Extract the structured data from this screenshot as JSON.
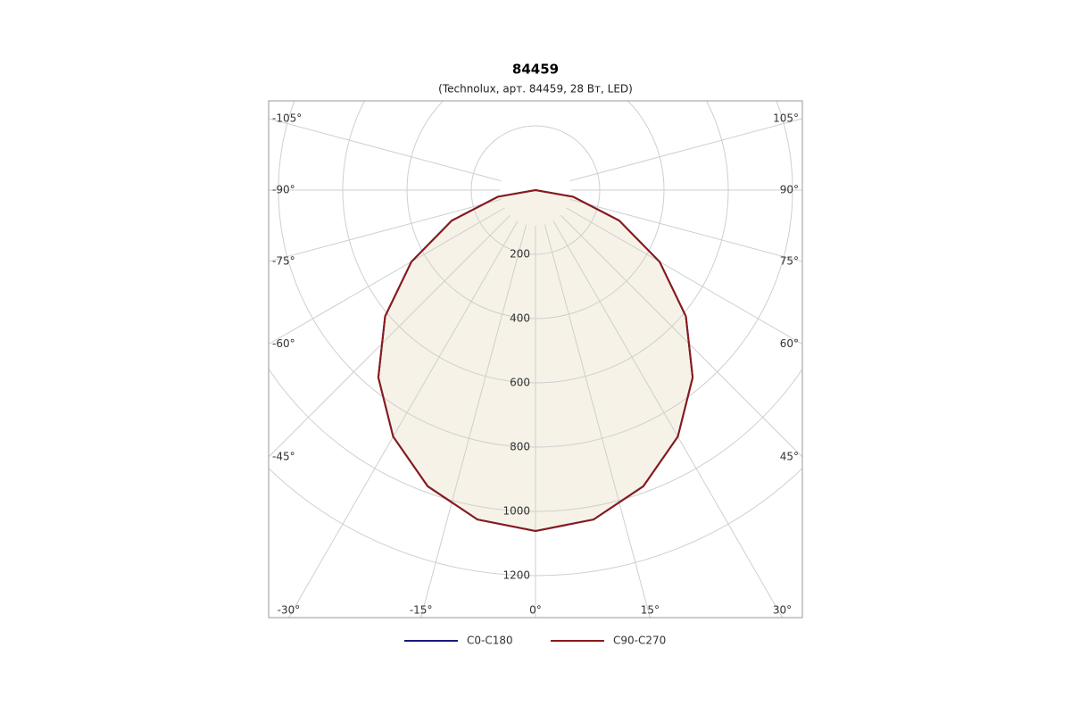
{
  "chart_data": {
    "type": "polar",
    "title": "84459",
    "subtitle": "(Technolux, арт. 84459, 28 Вт, LED)",
    "angles": [
      -90,
      -80,
      -70,
      -60,
      -50,
      -40,
      -30,
      -20,
      -10,
      0,
      10,
      20,
      30,
      40,
      50,
      60,
      70,
      80,
      90
    ],
    "series": [
      {
        "name": "C0-C180",
        "color": "#1a1a7a",
        "values": [
          0,
          119,
          277,
          446,
          611,
          761,
          886,
          981,
          1041,
          1061,
          1041,
          981,
          886,
          761,
          611,
          446,
          277,
          119,
          0
        ]
      },
      {
        "name": "C90-C270",
        "color": "#8b1a1a",
        "values": [
          0,
          119,
          277,
          446,
          611,
          761,
          886,
          981,
          1041,
          1061,
          1041,
          981,
          886,
          761,
          611,
          446,
          277,
          119,
          0
        ]
      }
    ],
    "fill": "#f6f2e8",
    "rlim": [
      0,
      1200
    ],
    "rticks": [
      200,
      400,
      600,
      800,
      1000,
      1200
    ],
    "angle_ticks": [
      {
        "value": -105,
        "label": "-105°"
      },
      {
        "value": -90,
        "label": "-90°"
      },
      {
        "value": -75,
        "label": "-75°"
      },
      {
        "value": -60,
        "label": "-60°"
      },
      {
        "value": -45,
        "label": "-45°"
      },
      {
        "value": -30,
        "label": "-30°"
      },
      {
        "value": -15,
        "label": "-15°"
      },
      {
        "value": 0,
        "label": "0°"
      },
      {
        "value": 15,
        "label": "15°"
      },
      {
        "value": 30,
        "label": "30°"
      },
      {
        "value": 45,
        "label": "45°"
      },
      {
        "value": 60,
        "label": "60°"
      },
      {
        "value": 75,
        "label": "75°"
      },
      {
        "value": 90,
        "label": "90°"
      },
      {
        "value": 105,
        "label": "105°"
      }
    ]
  }
}
